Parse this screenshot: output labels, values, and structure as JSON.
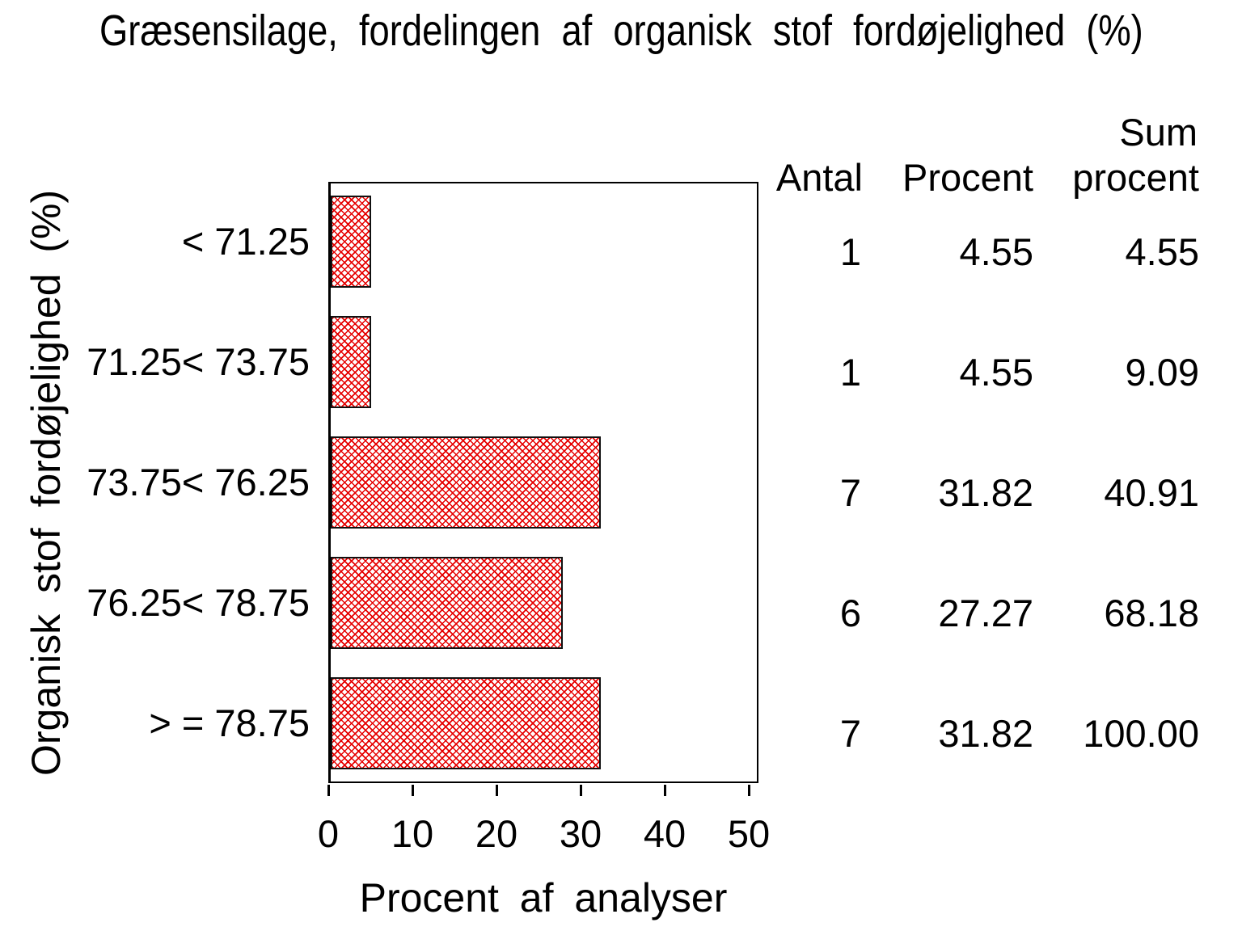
{
  "title": "Græsensilage, fordelingen af organisk stof fordøjelighed (%)",
  "y_axis_label": "Organisk stof fordøjelighed (%)",
  "x_axis_label": "Procent af analyser",
  "table_headers": {
    "antal": "Antal",
    "procent": "Procent",
    "sum_line1": "Sum",
    "sum_line2": "procent"
  },
  "chart_data": {
    "type": "bar",
    "orientation": "horizontal",
    "title": "Græsensilage, fordelingen af organisk stof fordøjelighed (%)",
    "xlabel": "Procent af analyser",
    "ylabel": "Organisk stof fordøjelighed (%)",
    "categories": [
      "< 71.25",
      "71.25< 73.75",
      "73.75< 76.25",
      "76.25< 78.75",
      "> = 78.75"
    ],
    "values": [
      4.55,
      4.55,
      31.82,
      27.27,
      31.82
    ],
    "xlim": [
      0,
      50
    ],
    "xticks": [
      0,
      10,
      20,
      30,
      40,
      50
    ],
    "grid": false,
    "legend": "none",
    "bar_style": "red diagonal crosshatch on white with black outline",
    "bar_color": "#e60000",
    "table": {
      "columns": [
        "Antal",
        "Procent",
        "Sum procent"
      ],
      "rows": [
        {
          "category": "< 71.25",
          "antal": "1",
          "procent": "4.55",
          "sum_procent": "4.55"
        },
        {
          "category": "71.25< 73.75",
          "antal": "1",
          "procent": "4.55",
          "sum_procent": "9.09"
        },
        {
          "category": "73.75< 76.25",
          "antal": "7",
          "procent": "31.82",
          "sum_procent": "40.91"
        },
        {
          "category": "76.25< 78.75",
          "antal": "6",
          "procent": "27.27",
          "sum_procent": "68.18"
        },
        {
          "category": "> = 78.75",
          "antal": "7",
          "procent": "31.82",
          "sum_procent": "100.00"
        }
      ]
    }
  }
}
